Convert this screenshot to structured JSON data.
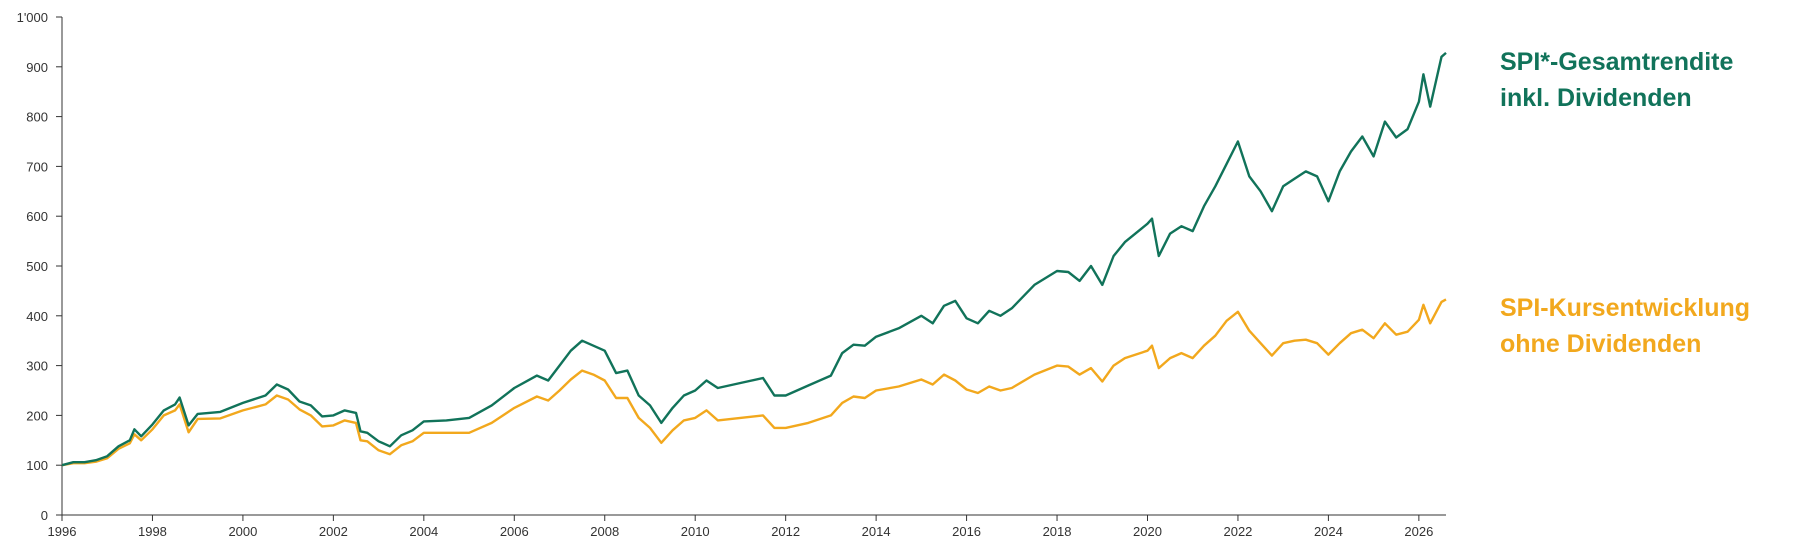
{
  "chart_data": {
    "type": "line",
    "title": "",
    "xlabel": "",
    "ylabel": "",
    "xlim": [
      1996,
      2026.6
    ],
    "ylim": [
      0,
      1000
    ],
    "x_ticks": [
      "1996",
      "1998",
      "2000",
      "2002",
      "2004",
      "2006",
      "2008",
      "2010",
      "2012",
      "2014",
      "2016",
      "2018",
      "2020",
      "2022",
      "2024",
      "2026"
    ],
    "y_ticks": [
      "0",
      "100",
      "200",
      "300",
      "400",
      "500",
      "600",
      "700",
      "800",
      "900",
      "1'000"
    ],
    "grid": false,
    "legend": "right",
    "series": [
      {
        "name": "SPI*-Gesamtrendite inkl. Dividenden",
        "label_lines": [
          "SPI*-Gesamtrendite",
          "inkl. Dividenden"
        ],
        "color": "#11735a",
        "points": [
          [
            1996.0,
            100
          ],
          [
            1996.25,
            106
          ],
          [
            1996.5,
            106
          ],
          [
            1996.75,
            110
          ],
          [
            1997.0,
            118
          ],
          [
            1997.25,
            138
          ],
          [
            1997.5,
            150
          ],
          [
            1997.6,
            172
          ],
          [
            1997.75,
            158
          ],
          [
            1998.0,
            182
          ],
          [
            1998.25,
            210
          ],
          [
            1998.5,
            222
          ],
          [
            1998.6,
            236
          ],
          [
            1998.8,
            180
          ],
          [
            1999.0,
            203
          ],
          [
            1999.5,
            207
          ],
          [
            2000.0,
            225
          ],
          [
            2000.5,
            240
          ],
          [
            2000.75,
            262
          ],
          [
            2001.0,
            252
          ],
          [
            2001.25,
            228
          ],
          [
            2001.5,
            220
          ],
          [
            2001.75,
            198
          ],
          [
            2002.0,
            200
          ],
          [
            2002.25,
            210
          ],
          [
            2002.5,
            205
          ],
          [
            2002.6,
            168
          ],
          [
            2002.75,
            165
          ],
          [
            2003.0,
            148
          ],
          [
            2003.25,
            138
          ],
          [
            2003.5,
            160
          ],
          [
            2003.75,
            170
          ],
          [
            2004.0,
            188
          ],
          [
            2004.5,
            190
          ],
          [
            2005.0,
            195
          ],
          [
            2005.5,
            220
          ],
          [
            2006.0,
            255
          ],
          [
            2006.5,
            280
          ],
          [
            2006.75,
            270
          ],
          [
            2007.0,
            300
          ],
          [
            2007.25,
            330
          ],
          [
            2007.5,
            350
          ],
          [
            2007.75,
            340
          ],
          [
            2008.0,
            330
          ],
          [
            2008.25,
            285
          ],
          [
            2008.5,
            290
          ],
          [
            2008.75,
            240
          ],
          [
            2009.0,
            220
          ],
          [
            2009.25,
            185
          ],
          [
            2009.5,
            215
          ],
          [
            2009.75,
            240
          ],
          [
            2010.0,
            250
          ],
          [
            2010.25,
            270
          ],
          [
            2010.5,
            255
          ],
          [
            2011.0,
            265
          ],
          [
            2011.5,
            275
          ],
          [
            2011.75,
            240
          ],
          [
            2012.0,
            240
          ],
          [
            2012.5,
            260
          ],
          [
            2013.0,
            280
          ],
          [
            2013.25,
            325
          ],
          [
            2013.5,
            342
          ],
          [
            2013.75,
            340
          ],
          [
            2014.0,
            358
          ],
          [
            2014.5,
            375
          ],
          [
            2015.0,
            400
          ],
          [
            2015.25,
            385
          ],
          [
            2015.5,
            420
          ],
          [
            2015.75,
            430
          ],
          [
            2016.0,
            395
          ],
          [
            2016.25,
            385
          ],
          [
            2016.5,
            410
          ],
          [
            2016.75,
            400
          ],
          [
            2017.0,
            415
          ],
          [
            2017.5,
            462
          ],
          [
            2018.0,
            490
          ],
          [
            2018.25,
            488
          ],
          [
            2018.5,
            470
          ],
          [
            2018.75,
            500
          ],
          [
            2019.0,
            462
          ],
          [
            2019.25,
            520
          ],
          [
            2019.5,
            548
          ],
          [
            2020.0,
            585
          ],
          [
            2020.1,
            595
          ],
          [
            2020.25,
            520
          ],
          [
            2020.5,
            565
          ],
          [
            2020.75,
            580
          ],
          [
            2021.0,
            570
          ],
          [
            2021.25,
            620
          ],
          [
            2021.5,
            660
          ],
          [
            2021.75,
            705
          ],
          [
            2022.0,
            750
          ],
          [
            2022.25,
            680
          ],
          [
            2022.5,
            650
          ],
          [
            2022.75,
            610
          ],
          [
            2023.0,
            660
          ],
          [
            2023.25,
            675
          ],
          [
            2023.5,
            690
          ],
          [
            2023.75,
            680
          ],
          [
            2024.0,
            630
          ],
          [
            2024.25,
            690
          ],
          [
            2024.5,
            730
          ],
          [
            2024.75,
            760
          ],
          [
            2025.0,
            720
          ],
          [
            2025.25,
            790
          ],
          [
            2025.5,
            758
          ],
          [
            2025.75,
            775
          ],
          [
            2026.0,
            830
          ],
          [
            2026.1,
            885
          ],
          [
            2026.25,
            820
          ],
          [
            2026.5,
            920
          ],
          [
            2026.6,
            928
          ]
        ]
      },
      {
        "name": "SPI-Kursentwicklung ohne Dividenden",
        "label_lines": [
          "SPI-Kursentwicklung",
          "ohne Dividenden"
        ],
        "color": "#f2a81d",
        "points": [
          [
            1996.0,
            100
          ],
          [
            1996.25,
            104
          ],
          [
            1996.5,
            104
          ],
          [
            1996.75,
            107
          ],
          [
            1997.0,
            114
          ],
          [
            1997.25,
            133
          ],
          [
            1997.5,
            144
          ],
          [
            1997.6,
            162
          ],
          [
            1997.75,
            150
          ],
          [
            1998.0,
            172
          ],
          [
            1998.25,
            200
          ],
          [
            1998.5,
            210
          ],
          [
            1998.6,
            222
          ],
          [
            1998.8,
            166
          ],
          [
            1999.0,
            193
          ],
          [
            1999.5,
            194
          ],
          [
            2000.0,
            210
          ],
          [
            2000.5,
            222
          ],
          [
            2000.75,
            240
          ],
          [
            2001.0,
            232
          ],
          [
            2001.25,
            212
          ],
          [
            2001.5,
            200
          ],
          [
            2001.75,
            178
          ],
          [
            2002.0,
            180
          ],
          [
            2002.25,
            190
          ],
          [
            2002.5,
            185
          ],
          [
            2002.6,
            150
          ],
          [
            2002.75,
            148
          ],
          [
            2003.0,
            130
          ],
          [
            2003.25,
            122
          ],
          [
            2003.5,
            140
          ],
          [
            2003.75,
            148
          ],
          [
            2004.0,
            165
          ],
          [
            2004.5,
            165
          ],
          [
            2005.0,
            165
          ],
          [
            2005.5,
            185
          ],
          [
            2006.0,
            215
          ],
          [
            2006.5,
            238
          ],
          [
            2006.75,
            230
          ],
          [
            2007.0,
            250
          ],
          [
            2007.25,
            272
          ],
          [
            2007.5,
            290
          ],
          [
            2007.75,
            282
          ],
          [
            2008.0,
            270
          ],
          [
            2008.25,
            235
          ],
          [
            2008.5,
            235
          ],
          [
            2008.75,
            195
          ],
          [
            2009.0,
            175
          ],
          [
            2009.25,
            145
          ],
          [
            2009.5,
            170
          ],
          [
            2009.75,
            190
          ],
          [
            2010.0,
            195
          ],
          [
            2010.25,
            210
          ],
          [
            2010.5,
            190
          ],
          [
            2011.0,
            195
          ],
          [
            2011.5,
            200
          ],
          [
            2011.75,
            175
          ],
          [
            2012.0,
            175
          ],
          [
            2012.5,
            185
          ],
          [
            2013.0,
            200
          ],
          [
            2013.25,
            225
          ],
          [
            2013.5,
            238
          ],
          [
            2013.75,
            235
          ],
          [
            2014.0,
            250
          ],
          [
            2014.5,
            258
          ],
          [
            2015.0,
            272
          ],
          [
            2015.25,
            262
          ],
          [
            2015.5,
            282
          ],
          [
            2015.75,
            270
          ],
          [
            2016.0,
            252
          ],
          [
            2016.25,
            245
          ],
          [
            2016.5,
            258
          ],
          [
            2016.75,
            250
          ],
          [
            2017.0,
            255
          ],
          [
            2017.5,
            282
          ],
          [
            2018.0,
            300
          ],
          [
            2018.25,
            298
          ],
          [
            2018.5,
            282
          ],
          [
            2018.75,
            295
          ],
          [
            2019.0,
            268
          ],
          [
            2019.25,
            300
          ],
          [
            2019.5,
            315
          ],
          [
            2020.0,
            330
          ],
          [
            2020.1,
            340
          ],
          [
            2020.25,
            295
          ],
          [
            2020.5,
            315
          ],
          [
            2020.75,
            325
          ],
          [
            2021.0,
            315
          ],
          [
            2021.25,
            340
          ],
          [
            2021.5,
            360
          ],
          [
            2021.75,
            390
          ],
          [
            2022.0,
            408
          ],
          [
            2022.25,
            370
          ],
          [
            2022.5,
            345
          ],
          [
            2022.75,
            320
          ],
          [
            2023.0,
            345
          ],
          [
            2023.25,
            350
          ],
          [
            2023.5,
            352
          ],
          [
            2023.75,
            345
          ],
          [
            2024.0,
            322
          ],
          [
            2024.25,
            345
          ],
          [
            2024.5,
            365
          ],
          [
            2024.75,
            372
          ],
          [
            2025.0,
            355
          ],
          [
            2025.25,
            385
          ],
          [
            2025.5,
            362
          ],
          [
            2025.75,
            368
          ],
          [
            2026.0,
            392
          ],
          [
            2026.1,
            422
          ],
          [
            2026.25,
            385
          ],
          [
            2026.5,
            428
          ],
          [
            2026.6,
            433
          ]
        ]
      }
    ]
  }
}
